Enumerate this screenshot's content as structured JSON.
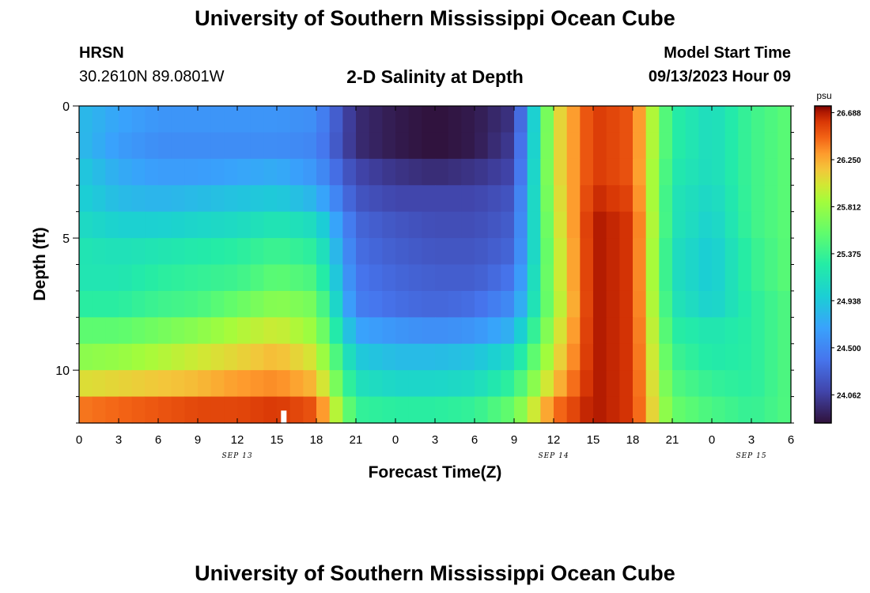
{
  "page": {
    "title": "University of Southern Mississippi Ocean Cube",
    "station": "HRSN",
    "coords": "30.2610N  89.0801W",
    "plot_title": "2-D Salinity at Depth",
    "model_start_label": "Model Start Time",
    "model_start_value": "09/13/2023 Hour 09",
    "footer_title": "University of Southern Mississippi Ocean Cube"
  },
  "chart_data": {
    "type": "heatmap",
    "title": "2-D Salinity at Depth",
    "xlabel": "Forecast Time(Z)",
    "ylabel": "Depth (ft)",
    "x_tick_labels": [
      "0",
      "3",
      "6",
      "9",
      "12",
      "15",
      "18",
      "21",
      "0",
      "3",
      "6",
      "9",
      "12",
      "15",
      "18",
      "21",
      "0",
      "3",
      "6"
    ],
    "x_tick_hours": [
      0,
      3,
      6,
      9,
      12,
      15,
      18,
      21,
      24,
      27,
      30,
      33,
      36,
      39,
      42,
      45,
      48,
      51,
      54
    ],
    "date_labels": [
      {
        "text": "SEP 13",
        "hour": 12
      },
      {
        "text": "SEP 14",
        "hour": 36
      },
      {
        "text": "SEP 15",
        "hour": 51
      }
    ],
    "xlim_hours": [
      0,
      54
    ],
    "y_ticks": [
      0,
      5,
      10
    ],
    "ylim_ft": [
      0,
      12
    ],
    "colorbar": {
      "unit": "psu",
      "labels": [
        "26.688",
        "26.250",
        "25.812",
        "25.375",
        "24.938",
        "24.500",
        "24.062"
      ],
      "range": [
        23.8,
        26.75
      ]
    },
    "marker": {
      "hour": 15.5,
      "depth_ft": 11.8
    },
    "depth_levels_ft": [
      0.5,
      1.5,
      2.5,
      3.5,
      4.5,
      5.5,
      6.5,
      7.5,
      8.5,
      9.5,
      10.5,
      11.5
    ],
    "time_hours": [
      0,
      3,
      6,
      9,
      12,
      15,
      18,
      21,
      24,
      27,
      30,
      33,
      36,
      39,
      42,
      45,
      48,
      51,
      54
    ],
    "salinity_psu": [
      [
        24.85,
        24.7,
        24.6,
        24.6,
        24.6,
        24.6,
        24.55,
        23.95,
        23.85,
        23.8,
        23.85,
        24.0,
        26.0,
        26.6,
        26.5,
        25.3,
        25.1,
        25.4,
        25.55
      ],
      [
        24.85,
        24.65,
        24.55,
        24.55,
        24.55,
        24.55,
        24.5,
        23.95,
        23.85,
        23.8,
        23.85,
        24.05,
        26.0,
        26.6,
        26.5,
        25.3,
        25.1,
        25.4,
        25.55
      ],
      [
        24.95,
        24.75,
        24.65,
        24.65,
        24.7,
        24.75,
        24.6,
        24.1,
        24.0,
        23.95,
        24.0,
        24.1,
        26.0,
        26.6,
        26.5,
        25.25,
        25.1,
        25.4,
        25.55
      ],
      [
        25.0,
        24.85,
        24.8,
        24.85,
        24.9,
        24.95,
        24.8,
        24.2,
        24.1,
        24.1,
        24.1,
        24.2,
        25.95,
        26.65,
        26.55,
        25.2,
        25.05,
        25.4,
        25.55
      ],
      [
        25.1,
        25.0,
        25.0,
        25.05,
        25.1,
        25.2,
        25.1,
        24.3,
        24.2,
        24.15,
        24.15,
        24.25,
        25.9,
        26.7,
        26.6,
        25.2,
        25.0,
        25.4,
        25.55
      ],
      [
        25.2,
        25.15,
        25.2,
        25.25,
        25.3,
        25.4,
        25.3,
        24.35,
        24.25,
        24.2,
        24.2,
        24.3,
        25.85,
        26.7,
        26.6,
        25.15,
        24.95,
        25.35,
        25.55
      ],
      [
        25.2,
        25.2,
        25.3,
        25.35,
        25.4,
        25.55,
        25.45,
        24.4,
        24.3,
        24.25,
        24.25,
        24.4,
        25.85,
        26.7,
        26.6,
        25.15,
        24.95,
        25.35,
        25.55
      ],
      [
        25.3,
        25.3,
        25.4,
        25.45,
        25.6,
        25.75,
        25.65,
        24.45,
        24.35,
        24.3,
        24.35,
        24.55,
        25.8,
        26.7,
        26.6,
        25.2,
        25.0,
        25.3,
        25.5
      ],
      [
        25.55,
        25.55,
        25.65,
        25.75,
        25.9,
        26.0,
        25.8,
        24.7,
        24.6,
        24.55,
        24.6,
        24.8,
        25.9,
        26.7,
        26.6,
        25.3,
        25.2,
        25.3,
        25.5
      ],
      [
        25.75,
        25.8,
        25.9,
        26.0,
        26.1,
        26.2,
        26.0,
        24.95,
        24.85,
        24.85,
        24.9,
        25.1,
        26.0,
        26.7,
        26.6,
        25.4,
        25.25,
        25.3,
        25.5
      ],
      [
        26.05,
        26.1,
        26.15,
        26.2,
        26.3,
        26.35,
        26.2,
        25.15,
        25.05,
        25.05,
        25.1,
        25.35,
        26.15,
        26.7,
        26.6,
        25.5,
        25.35,
        25.3,
        25.5
      ],
      [
        26.4,
        26.45,
        26.5,
        26.55,
        26.55,
        26.6,
        26.5,
        25.35,
        25.3,
        25.3,
        25.35,
        25.6,
        26.4,
        26.7,
        26.6,
        25.6,
        25.45,
        25.35,
        25.5
      ]
    ]
  }
}
